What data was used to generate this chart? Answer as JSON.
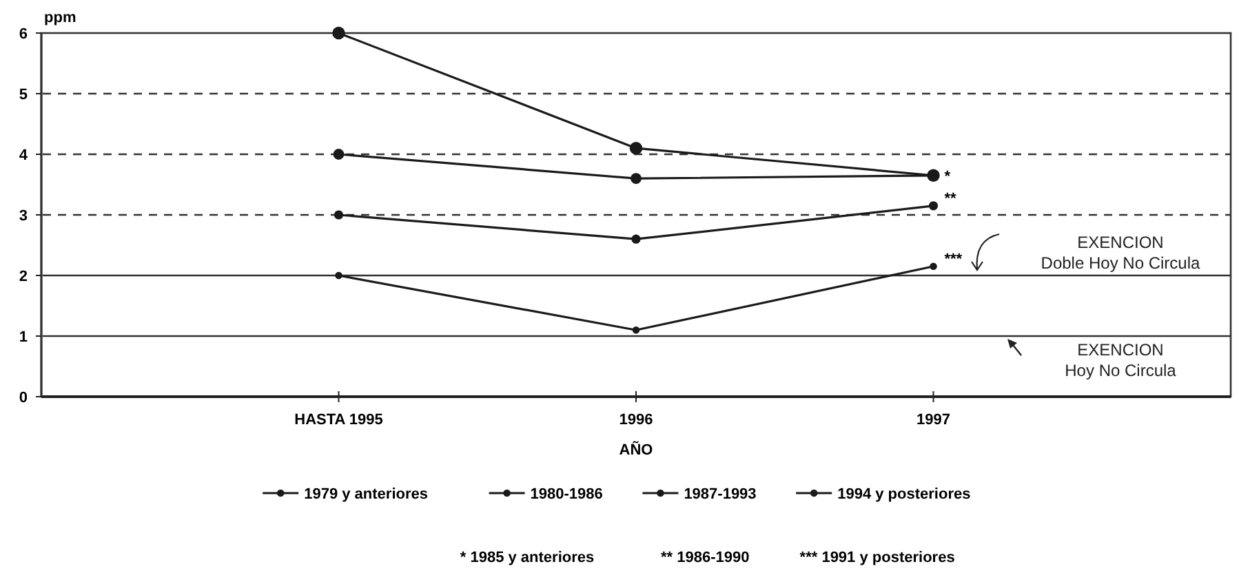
{
  "chart_data": {
    "type": "line",
    "ylabel": "ppm",
    "xlabel": "AÑO",
    "categories": [
      "HASTA 1995",
      "1996",
      "1997"
    ],
    "ylim": [
      0,
      6
    ],
    "yticks": [
      0,
      1,
      2,
      3,
      4,
      5,
      6
    ],
    "grid": false,
    "marker": "circle",
    "line_style": "solid",
    "legend": "bottom",
    "series": [
      {
        "name": "1979 y anteriores",
        "color": "#1a1a1a",
        "values": [
          6,
          4.1,
          3.65
        ]
      },
      {
        "name": "1980-1986",
        "color": "#1a1a1a",
        "values": [
          4,
          3.6,
          3.65
        ]
      },
      {
        "name": "1987-1993",
        "color": "#1a1a1a",
        "values": [
          3,
          2.6,
          3.15
        ]
      },
      {
        "name": "1994 y posteriores",
        "color": "#1a1a1a",
        "values": [
          2,
          1.1,
          2.15
        ]
      }
    ],
    "ref_lines": [
      {
        "axis": "y",
        "value": 5,
        "label": null,
        "line_style": "dashed"
      },
      {
        "axis": "y",
        "value": 4,
        "label": null,
        "line_style": "dashed"
      },
      {
        "axis": "y",
        "value": 3,
        "label": null,
        "line_style": "dashed"
      },
      {
        "axis": "y",
        "value": 2,
        "label": "EXENCION\nDoble Hoy No Circula",
        "line_style": "solid"
      },
      {
        "axis": "y",
        "value": 1,
        "label": "EXENCION\nHoy No Circula",
        "line_style": "solid"
      }
    ],
    "annotations": [
      {
        "text": "*",
        "x": "1997",
        "y": 3.65
      },
      {
        "text": "**",
        "x": "1997",
        "y": 3.15
      },
      {
        "text": "***",
        "x": "1997",
        "y": 2.15
      },
      "* 1985 y anteriores",
      "** 1986-1990",
      "*** 1991 y posteriores"
    ]
  }
}
